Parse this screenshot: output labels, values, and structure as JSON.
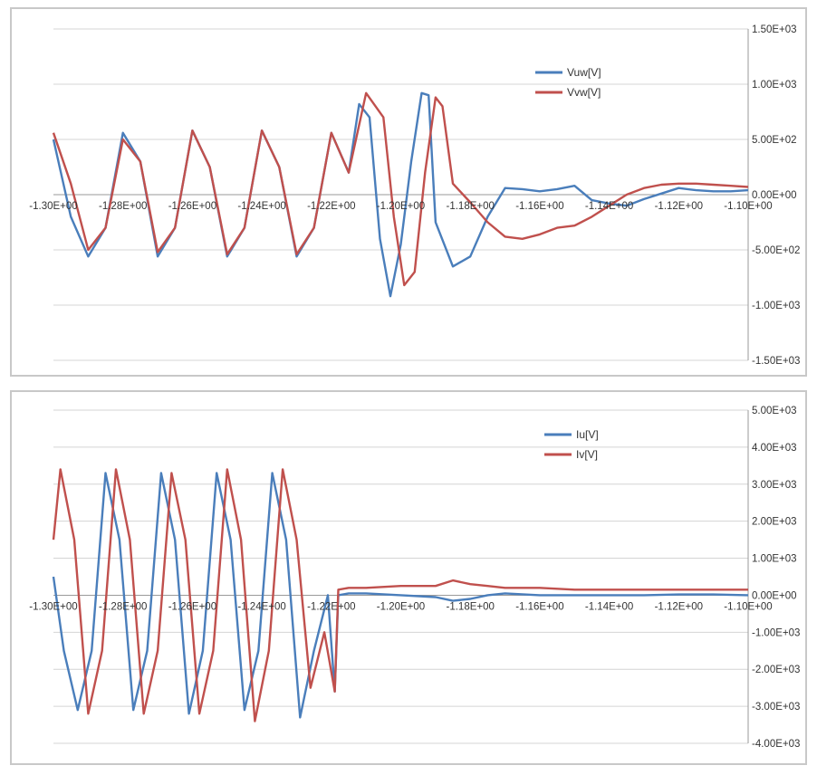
{
  "chart_data": [
    {
      "type": "line",
      "title": "",
      "xlabel": "",
      "ylabel": "",
      "xlim": [
        -1.3,
        -1.1
      ],
      "ylim": [
        -1500,
        1500
      ],
      "grid": true,
      "legend": "top-right",
      "x_tick_labels": [
        "-1.30E+00",
        "-1.28E+00",
        "-1.26E+00",
        "-1.24E+00",
        "-1.22E+00",
        "-1.20E+00",
        "-1.18E+00",
        "-1.16E+00",
        "-1.14E+00",
        "-1.12E+00",
        "-1.10E+00"
      ],
      "y_ticks": [
        {
          "value": 1500,
          "label": "1.50E+03"
        },
        {
          "value": 1000,
          "label": "1.00E+03"
        },
        {
          "value": 500,
          "label": "5.00E+02"
        },
        {
          "value": 0,
          "label": "0.00E+00"
        },
        {
          "value": -500,
          "label": "-5.00E+02"
        },
        {
          "value": -1000,
          "label": "-1.00E+03"
        },
        {
          "value": -1500,
          "label": "-1.50E+03"
        }
      ],
      "series": [
        {
          "name": "Vuw[V]",
          "color": "#4a7ebb",
          "x": [
            -1.3,
            -1.295,
            -1.29,
            -1.285,
            -1.28,
            -1.275,
            -1.27,
            -1.265,
            -1.26,
            -1.255,
            -1.25,
            -1.245,
            -1.24,
            -1.235,
            -1.23,
            -1.225,
            -1.22,
            -1.215,
            -1.212,
            -1.209,
            -1.206,
            -1.203,
            -1.2,
            -1.197,
            -1.194,
            -1.192,
            -1.19,
            -1.185,
            -1.18,
            -1.175,
            -1.17,
            -1.165,
            -1.16,
            -1.155,
            -1.15,
            -1.145,
            -1.14,
            -1.135,
            -1.13,
            -1.125,
            -1.12,
            -1.115,
            -1.11,
            -1.105,
            -1.1
          ],
          "y": [
            500,
            -200,
            -560,
            -300,
            560,
            300,
            -560,
            -300,
            580,
            250,
            -560,
            -300,
            580,
            250,
            -560,
            -300,
            560,
            200,
            820,
            700,
            -400,
            -920,
            -450,
            300,
            920,
            900,
            -250,
            -650,
            -560,
            -200,
            60,
            50,
            30,
            50,
            80,
            -50,
            -80,
            -100,
            -40,
            10,
            60,
            40,
            30,
            30,
            40
          ]
        },
        {
          "name": "Vvw[V]",
          "color": "#c0504d",
          "x": [
            -1.3,
            -1.295,
            -1.29,
            -1.285,
            -1.28,
            -1.275,
            -1.27,
            -1.265,
            -1.26,
            -1.255,
            -1.25,
            -1.245,
            -1.24,
            -1.235,
            -1.23,
            -1.225,
            -1.22,
            -1.215,
            -1.21,
            -1.205,
            -1.202,
            -1.199,
            -1.196,
            -1.193,
            -1.19,
            -1.188,
            -1.185,
            -1.18,
            -1.175,
            -1.17,
            -1.165,
            -1.16,
            -1.155,
            -1.15,
            -1.145,
            -1.14,
            -1.135,
            -1.13,
            -1.125,
            -1.12,
            -1.115,
            -1.11,
            -1.105,
            -1.1
          ],
          "y": [
            560,
            100,
            -500,
            -300,
            500,
            300,
            -520,
            -300,
            580,
            250,
            -540,
            -300,
            580,
            250,
            -540,
            -300,
            560,
            200,
            920,
            700,
            -200,
            -820,
            -700,
            200,
            880,
            800,
            100,
            -70,
            -250,
            -380,
            -400,
            -360,
            -300,
            -280,
            -200,
            -100,
            0,
            60,
            90,
            100,
            100,
            90,
            80,
            70
          ]
        }
      ]
    },
    {
      "type": "line",
      "title": "",
      "xlabel": "",
      "ylabel": "",
      "xlim": [
        -1.3,
        -1.1
      ],
      "ylim": [
        -4000,
        5000
      ],
      "grid": true,
      "legend": "top-right",
      "x_tick_labels": [
        "-1.30E+00",
        "-1.28E+00",
        "-1.26E+00",
        "-1.24E+00",
        "-1.22E+00",
        "-1.20E+00",
        "-1.18E+00",
        "-1.16E+00",
        "-1.14E+00",
        "-1.12E+00",
        "-1.10E+00"
      ],
      "y_ticks": [
        {
          "value": 5000,
          "label": "5.00E+03"
        },
        {
          "value": 4000,
          "label": "4.00E+03"
        },
        {
          "value": 3000,
          "label": "3.00E+03"
        },
        {
          "value": 2000,
          "label": "2.00E+03"
        },
        {
          "value": 1000,
          "label": "1.00E+03"
        },
        {
          "value": 0,
          "label": "0.00E+00"
        },
        {
          "value": -1000,
          "label": "-1.00E+03"
        },
        {
          "value": -2000,
          "label": "-2.00E+03"
        },
        {
          "value": -3000,
          "label": "-3.00E+03"
        },
        {
          "value": -4000,
          "label": "-4.00E+03"
        }
      ],
      "series": [
        {
          "name": "Iu[V]",
          "color": "#4a7ebb",
          "x": [
            -1.3,
            -1.297,
            -1.293,
            -1.289,
            -1.285,
            -1.281,
            -1.277,
            -1.273,
            -1.269,
            -1.265,
            -1.261,
            -1.257,
            -1.253,
            -1.249,
            -1.245,
            -1.241,
            -1.237,
            -1.233,
            -1.229,
            -1.225,
            -1.221,
            -1.219,
            -1.218,
            -1.215,
            -1.21,
            -1.2,
            -1.19,
            -1.185,
            -1.18,
            -1.175,
            -1.17,
            -1.16,
            -1.15,
            -1.14,
            -1.13,
            -1.12,
            -1.11,
            -1.1
          ],
          "y": [
            500,
            -1500,
            -3100,
            -1500,
            3300,
            1500,
            -3100,
            -1500,
            3300,
            1500,
            -3200,
            -1500,
            3300,
            1500,
            -3100,
            -1500,
            3300,
            1500,
            -3300,
            -1500,
            0,
            -2600,
            0,
            50,
            50,
            0,
            -50,
            -150,
            -100,
            0,
            50,
            0,
            0,
            0,
            0,
            20,
            20,
            0
          ]
        },
        {
          "name": "Iv[V]",
          "color": "#c0504d",
          "x": [
            -1.3,
            -1.298,
            -1.294,
            -1.29,
            -1.286,
            -1.282,
            -1.278,
            -1.274,
            -1.27,
            -1.266,
            -1.262,
            -1.258,
            -1.254,
            -1.25,
            -1.246,
            -1.242,
            -1.238,
            -1.234,
            -1.23,
            -1.226,
            -1.222,
            -1.219,
            -1.218,
            -1.215,
            -1.21,
            -1.2,
            -1.19,
            -1.185,
            -1.18,
            -1.175,
            -1.17,
            -1.16,
            -1.15,
            -1.14,
            -1.13,
            -1.12,
            -1.11,
            -1.1
          ],
          "y": [
            1500,
            3400,
            1500,
            -3200,
            -1500,
            3400,
            1500,
            -3200,
            -1500,
            3300,
            1500,
            -3200,
            -1500,
            3400,
            1500,
            -3400,
            -1500,
            3400,
            1500,
            -2500,
            -1000,
            -2600,
            150,
            200,
            200,
            250,
            250,
            400,
            300,
            250,
            200,
            200,
            150,
            150,
            150,
            150,
            150,
            150
          ]
        }
      ]
    }
  ]
}
